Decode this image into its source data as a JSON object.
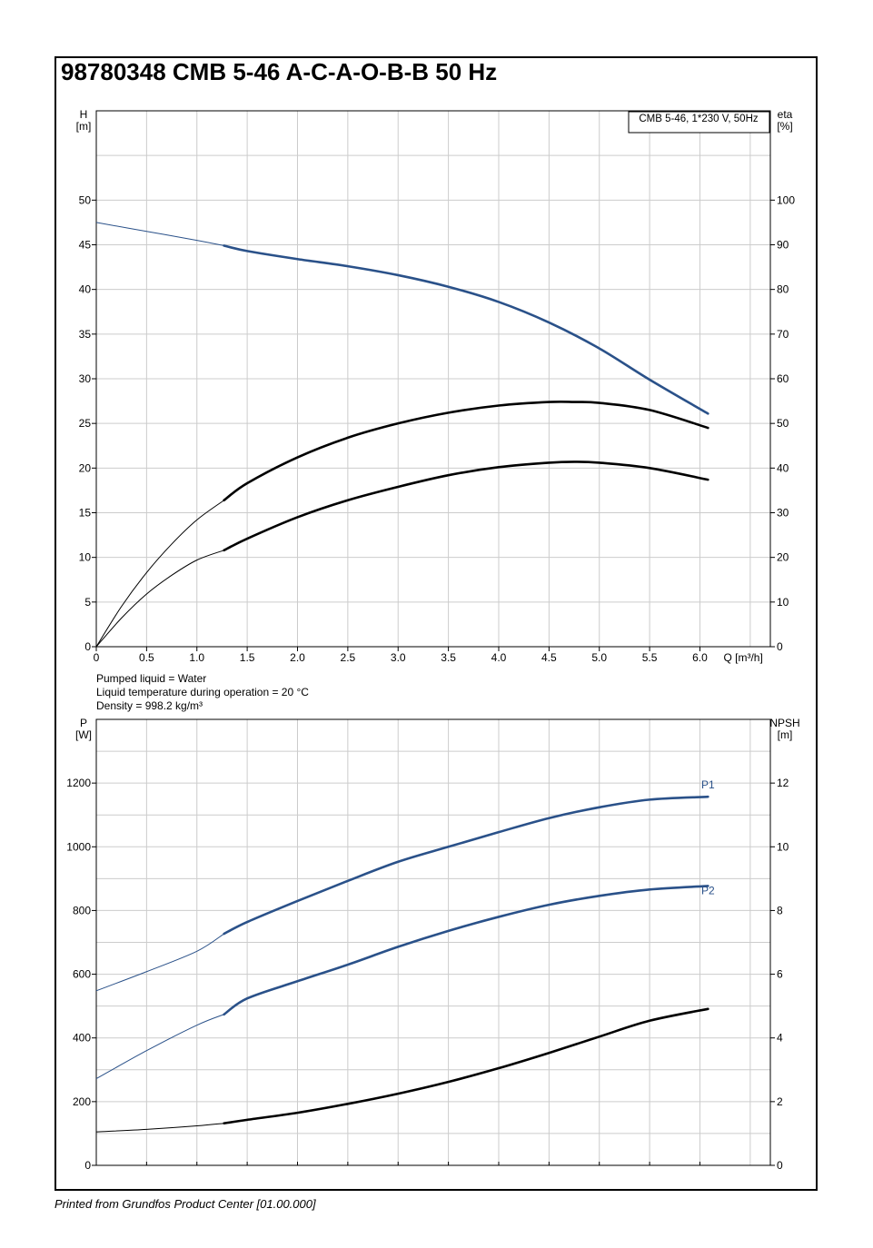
{
  "title": "98780348 CMB 5-46 A-C-A-O-B-B 50 Hz",
  "footer": "Printed from Grundfos Product Center [01.00.000]",
  "liquid_info": [
    "Pumped liquid = Water",
    "Liquid temperature during operation = 20 °C",
    "Density = 998.2 kg/m³"
  ],
  "colors": {
    "blue": "#2a5189",
    "black": "#000000",
    "grid": "#cccccc"
  },
  "chart_data": [
    {
      "type": "line",
      "legend_box": "CMB 5-46, 1*230 V, 50Hz",
      "xlabel": "Q [m³/h]",
      "ylabel": [
        "H",
        "[m]"
      ],
      "ylabel_right": [
        "eta",
        "[%]"
      ],
      "xlim": [
        0,
        6.7
      ],
      "ylim": [
        0,
        60
      ],
      "ylim_right": [
        0,
        120
      ],
      "x_ticks": [
        "0",
        "0.5",
        "1.0",
        "1.5",
        "2.0",
        "2.5",
        "3.0",
        "3.5",
        "4.0",
        "4.5",
        "5.0",
        "5.5",
        "6.0"
      ],
      "y_ticks": [
        "0",
        "5",
        "10",
        "15",
        "20",
        "25",
        "30",
        "35",
        "40",
        "45",
        "50"
      ],
      "y_ticks_right": [
        "0",
        "10",
        "20",
        "30",
        "40",
        "50",
        "60",
        "70",
        "80",
        "90",
        "100"
      ],
      "grid": true,
      "series": [
        {
          "axis": "left",
          "color": "#2a5189",
          "thin_until": 1.27,
          "x": [
            0,
            0.5,
            1.0,
            1.27,
            1.5,
            2.0,
            2.5,
            3.0,
            3.5,
            4.0,
            4.5,
            5.0,
            5.5,
            6.08
          ],
          "y": [
            47.5,
            46.5,
            45.5,
            44.9,
            44.3,
            43.4,
            42.6,
            41.6,
            40.3,
            38.6,
            36.3,
            33.4,
            29.9,
            26.1
          ]
        },
        {
          "axis": "left",
          "color": "#000000",
          "thin_until": 1.27,
          "x": [
            0,
            0.25,
            0.5,
            0.75,
            1.0,
            1.27,
            1.5,
            2.0,
            2.5,
            3.0,
            3.5,
            4.0,
            4.5,
            4.75,
            5.0,
            5.5,
            6.08
          ],
          "y": [
            0,
            4.5,
            8.3,
            11.5,
            14.2,
            16.4,
            18.3,
            21.2,
            23.4,
            25.0,
            26.2,
            27.0,
            27.4,
            27.4,
            27.3,
            26.5,
            24.5
          ]
        },
        {
          "axis": "left",
          "color": "#000000",
          "thin_until": 1.27,
          "x": [
            0,
            0.25,
            0.5,
            0.75,
            1.0,
            1.27,
            1.5,
            2.0,
            2.5,
            3.0,
            3.5,
            4.0,
            4.5,
            4.75,
            5.0,
            5.5,
            6.08
          ],
          "y": [
            0,
            3.2,
            5.9,
            8.0,
            9.7,
            10.8,
            12.1,
            14.5,
            16.4,
            17.9,
            19.2,
            20.1,
            20.6,
            20.7,
            20.6,
            20.0,
            18.7
          ]
        }
      ]
    },
    {
      "type": "line",
      "xlim": [
        0,
        6.7
      ],
      "ylabel": [
        "P",
        "[W]"
      ],
      "ylabel_right": [
        "NPSH",
        "[m]"
      ],
      "ylim": [
        0,
        1400
      ],
      "ylim_right": [
        0,
        14
      ],
      "y_ticks": [
        "0",
        "200",
        "400",
        "600",
        "800",
        "1000",
        "1200"
      ],
      "y_ticks_right": [
        "0",
        "2",
        "4",
        "6",
        "8",
        "10",
        "12"
      ],
      "grid": true,
      "series": [
        {
          "name": "P1",
          "axis": "left",
          "color": "#2a5189",
          "thin_until": 1.27,
          "x": [
            0,
            0.5,
            1.0,
            1.27,
            1.5,
            2.0,
            2.5,
            3.0,
            3.5,
            4.0,
            4.5,
            5.0,
            5.5,
            6.08
          ],
          "y": [
            548,
            608,
            672,
            727,
            764,
            830,
            893,
            953,
            1000,
            1046,
            1090,
            1124,
            1148,
            1157
          ]
        },
        {
          "name": "P2",
          "axis": "left",
          "color": "#2a5189",
          "thin_until": 1.27,
          "x": [
            0,
            0.5,
            1.0,
            1.27,
            1.5,
            2.0,
            2.5,
            3.0,
            3.5,
            4.0,
            4.5,
            5.0,
            5.5,
            6.08
          ],
          "y": [
            272,
            360,
            440,
            474,
            524,
            578,
            630,
            686,
            736,
            780,
            818,
            846,
            866,
            877
          ]
        },
        {
          "axis": "right",
          "color": "#000000",
          "thin_until": 1.27,
          "x": [
            0,
            0.5,
            1.0,
            1.27,
            1.5,
            2.0,
            2.5,
            3.0,
            3.5,
            4.0,
            4.5,
            5.0,
            5.5,
            6.08
          ],
          "y": [
            1.05,
            1.13,
            1.24,
            1.32,
            1.43,
            1.65,
            1.93,
            2.25,
            2.62,
            3.05,
            3.53,
            4.04,
            4.54,
            4.91
          ]
        }
      ]
    }
  ]
}
